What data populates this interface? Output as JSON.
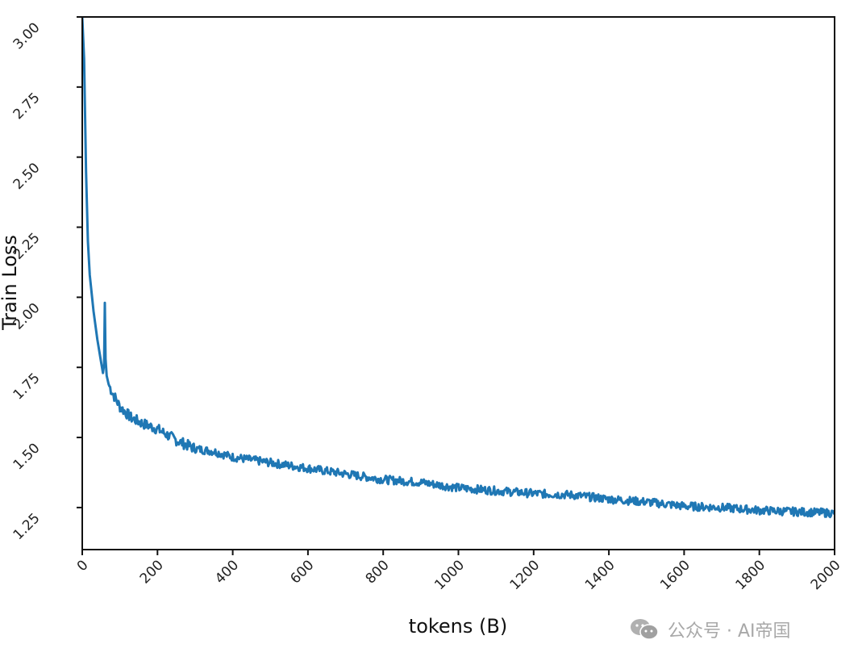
{
  "chart_data": {
    "type": "line",
    "title": "",
    "xlabel": "tokens (B)",
    "ylabel": "Train Loss",
    "xlim": [
      0,
      2000
    ],
    "ylim": [
      1.1,
      3.0
    ],
    "grid": false,
    "legend": null,
    "x_ticks": [
      "0",
      "200",
      "400",
      "600",
      "800",
      "1000",
      "1200",
      "1400",
      "1600",
      "1800",
      "2000"
    ],
    "y_ticks": [
      "1.25",
      "1.50",
      "1.75",
      "2.00",
      "2.25",
      "2.50",
      "2.75",
      "3.00"
    ],
    "series": [
      {
        "name": "train loss",
        "color": "#1f77b4",
        "x": [
          0,
          5,
          10,
          15,
          20,
          30,
          40,
          50,
          55,
          58,
          60,
          62,
          65,
          70,
          80,
          100,
          130,
          160,
          200,
          250,
          300,
          350,
          400,
          450,
          500,
          600,
          700,
          800,
          900,
          1000,
          1100,
          1200,
          1300,
          1400,
          1500,
          1600,
          1700,
          1800,
          1900,
          2000
        ],
        "y": [
          3.0,
          2.85,
          2.45,
          2.2,
          2.08,
          1.95,
          1.85,
          1.77,
          1.73,
          1.76,
          1.98,
          1.78,
          1.72,
          1.69,
          1.66,
          1.61,
          1.57,
          1.55,
          1.53,
          1.49,
          1.46,
          1.45,
          1.43,
          1.42,
          1.41,
          1.39,
          1.37,
          1.35,
          1.34,
          1.32,
          1.31,
          1.3,
          1.295,
          1.28,
          1.27,
          1.255,
          1.25,
          1.24,
          1.235,
          1.23
        ]
      }
    ]
  },
  "watermark": {
    "icon": "wechat-icon",
    "text": "公众号 · AI帝国"
  }
}
